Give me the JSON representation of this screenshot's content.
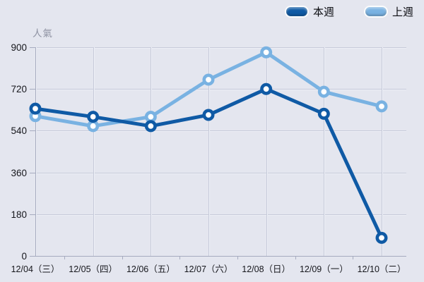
{
  "page": {
    "background": "#e4e6ef",
    "grid_color": "#c6cad9",
    "grid_highlight": "#eef0f7",
    "axis_color": "#a6abbf",
    "tick_text_color": "#16171c",
    "ylabel_color": "#8f93a3"
  },
  "chart_data": {
    "type": "line",
    "title": "",
    "xlabel": "",
    "ylabel": "人氣",
    "categories": [
      "12/04（三）",
      "12/05（四）",
      "12/06（五）",
      "12/07（六）",
      "12/08（日）",
      "12/09（一）",
      "12/10（二）"
    ],
    "series": [
      {
        "name": "本週",
        "color": "#0f5aa5",
        "values": [
          635,
          600,
          560,
          608,
          720,
          613,
          78
        ]
      },
      {
        "name": "上週",
        "color": "#79b2e2",
        "values": [
          603,
          560,
          600,
          760,
          878,
          708,
          645
        ]
      }
    ],
    "yticks": [
      0,
      180,
      360,
      540,
      720,
      900
    ],
    "ylim": [
      0,
      900
    ],
    "grid": true,
    "legend_position": "top-right",
    "marker": "open-circle"
  }
}
